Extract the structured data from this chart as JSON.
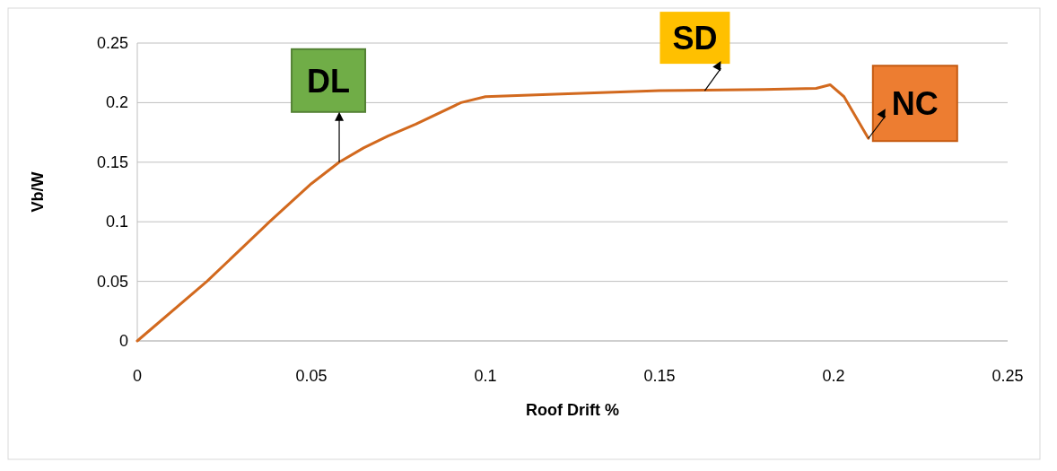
{
  "chart_data": {
    "type": "line",
    "xlabel": "Roof Drift %",
    "ylabel": "Vb/W",
    "x": [
      0,
      0.02,
      0.038,
      0.05,
      0.058,
      0.065,
      0.072,
      0.08,
      0.093,
      0.1,
      0.12,
      0.15,
      0.18,
      0.195,
      0.199,
      0.203,
      0.21
    ],
    "series": [
      {
        "color": "#d2691e",
        "values": [
          0,
          0.05,
          0.1,
          0.132,
          0.15,
          0.162,
          0.172,
          0.182,
          0.2,
          0.205,
          0.207,
          0.21,
          0.211,
          0.212,
          0.215,
          0.205,
          0.17
        ]
      }
    ],
    "xlim": [
      0,
      0.25
    ],
    "xticks": [
      0,
      0.05,
      0.1,
      0.15,
      0.2,
      0.25
    ],
    "ylim": [
      0,
      0.25
    ],
    "yticks": [
      0,
      0.05,
      0.1,
      0.15,
      0.2,
      0.25
    ],
    "grid": "y",
    "marker": "none",
    "line_style": "solid",
    "annotations": [
      {
        "text": "DL",
        "x": 0.058,
        "y": 0.15
      },
      {
        "text": "SD",
        "x": 0.163,
        "y": 0.21
      },
      {
        "text": "NC",
        "x": 0.21,
        "y": 0.17
      }
    ]
  }
}
